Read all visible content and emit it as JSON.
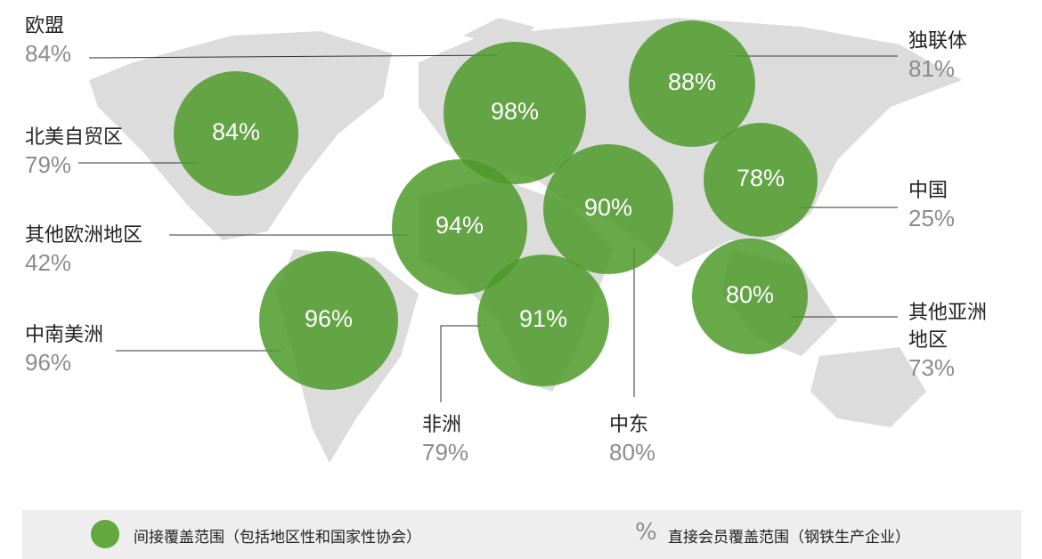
{
  "regions": [
    {
      "name": "欧盟",
      "direct": "84%",
      "indirect": "98%"
    },
    {
      "name": "北美自贸区",
      "direct": "79%",
      "indirect": "84%"
    },
    {
      "name": "其他欧洲地区",
      "direct": "42%",
      "indirect": "94%"
    },
    {
      "name": "中南美洲",
      "direct": "96%",
      "indirect": "96%"
    },
    {
      "name": "非洲",
      "direct": "79%",
      "indirect": "91%"
    },
    {
      "name": "中东",
      "direct": "80%",
      "indirect": "90%"
    },
    {
      "name": "独联体",
      "direct": "81%",
      "indirect": "88%"
    },
    {
      "name": "中国",
      "direct": "25%",
      "indirect": "78%"
    },
    {
      "name": "其他亚洲地区",
      "direct": "73%",
      "indirect": "80%"
    }
  ],
  "legend": {
    "indirect": "间接覆盖范围（包括地区性和国家性协会）",
    "symbol": "%",
    "direct": "直接会员覆盖范围（钢铁生产企业）"
  }
}
